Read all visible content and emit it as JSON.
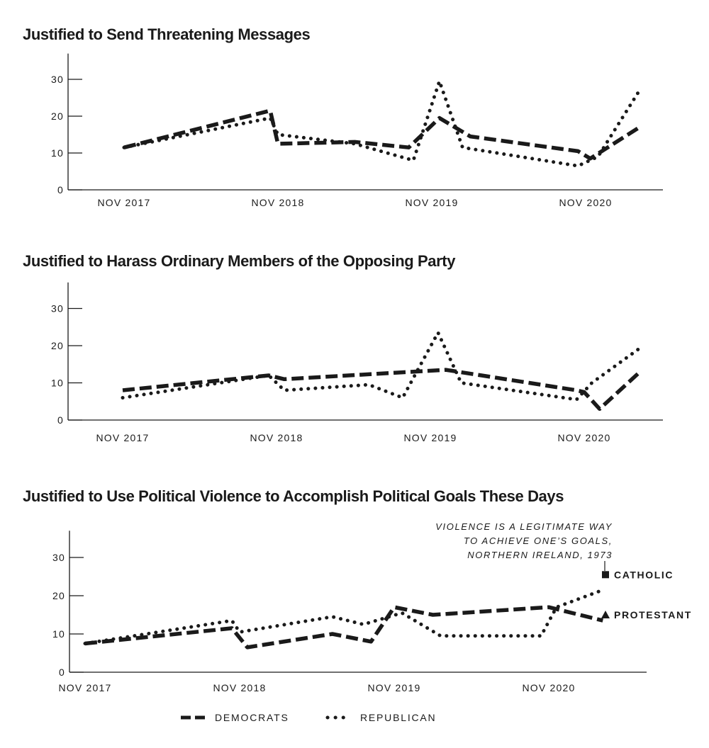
{
  "colors": {
    "ink": "#1a1a1a",
    "background": "#ffffff"
  },
  "chart_data": [
    {
      "type": "line",
      "title": "Justified to Send Threatening Messages",
      "x_ticks": [
        "NOV 2017",
        "NOV 2018",
        "NOV 2019",
        "NOV 2020"
      ],
      "y_ticks": [
        0,
        10,
        20,
        30
      ],
      "ylim": [
        0,
        37
      ],
      "xlim": [
        -0.15,
        3.3
      ],
      "series": [
        {
          "name": "DEMOCRATS",
          "style": "dashed",
          "x": [
            0,
            0.95,
            1.0,
            1.5,
            1.85,
            2.05,
            2.25,
            2.95,
            3.03,
            3.35
          ],
          "y": [
            11.5,
            21.5,
            12.5,
            13,
            11.5,
            19.5,
            14.5,
            10.5,
            8.5,
            17
          ]
        },
        {
          "name": "REPUBLICAN",
          "style": "dotted",
          "x": [
            0,
            0.95,
            1.0,
            1.5,
            1.88,
            2.05,
            2.2,
            2.95,
            3.08,
            3.35
          ],
          "y": [
            11.5,
            19.5,
            15,
            12.5,
            8,
            29.5,
            11.5,
            6.5,
            9,
            27
          ]
        }
      ]
    },
    {
      "type": "line",
      "title": "Justified to Harass Ordinary Members of the Opposing Party",
      "x_ticks": [
        "NOV 2017",
        "NOV 2018",
        "NOV 2019",
        "NOV 2020"
      ],
      "y_ticks": [
        0,
        10,
        20,
        30
      ],
      "ylim": [
        0,
        37
      ],
      "xlim": [
        -0.15,
        3.3
      ],
      "series": [
        {
          "name": "DEMOCRATS",
          "style": "dashed",
          "x": [
            0,
            0.95,
            1.05,
            2.1,
            2.95,
            3.0,
            3.1,
            3.35
          ],
          "y": [
            8,
            12,
            11,
            13.5,
            8,
            7.5,
            3,
            12.5
          ]
        },
        {
          "name": "REPUBLICAN",
          "style": "dotted",
          "x": [
            0,
            0.95,
            1.05,
            1.6,
            1.82,
            2.05,
            2.2,
            2.95,
            3.05,
            3.35
          ],
          "y": [
            6,
            12,
            8,
            9.5,
            6,
            23.5,
            10,
            5.5,
            10,
            19
          ]
        }
      ]
    },
    {
      "type": "line",
      "title": "Justified to Use Political Violence to Accomplish Political Goals These Days",
      "x_ticks": [
        "NOV 2017",
        "NOV 2018",
        "NOV 2019",
        "NOV 2020"
      ],
      "y_ticks": [
        0,
        10,
        20,
        30
      ],
      "ylim": [
        0,
        37
      ],
      "xlim": [
        -0.2,
        3.65
      ],
      "series": [
        {
          "name": "DEMOCRATS",
          "style": "dashed",
          "x": [
            0,
            0.95,
            1.05,
            1.6,
            1.85,
            2.0,
            2.25,
            3.0,
            3.35
          ],
          "y": [
            7.5,
            11.5,
            6.5,
            10,
            8,
            17,
            15,
            17,
            13.5
          ]
        },
        {
          "name": "REPUBLICAN",
          "style": "dotted",
          "x": [
            0,
            0.95,
            1.0,
            1.6,
            1.8,
            2.05,
            2.3,
            2.95,
            3.05,
            3.35
          ],
          "y": [
            7.5,
            13.5,
            10.5,
            14.5,
            12.5,
            15.5,
            9.5,
            9.5,
            17,
            21.5
          ]
        }
      ],
      "annotation": [
        "VIOLENCE IS A LEGITIMATE WAY",
        "TO ACHIEVE ONE’S GOALS,",
        "NORTHERN IRELAND, 1973"
      ],
      "markers": [
        {
          "label": "CATHOLIC",
          "shape": "square",
          "value": 25.5
        },
        {
          "label": "PROTESTANT",
          "shape": "triangle",
          "value": 15
        }
      ]
    }
  ],
  "legend": [
    {
      "label": "DEMOCRATS",
      "style": "dashed"
    },
    {
      "label": "REPUBLICAN",
      "style": "dotted"
    }
  ]
}
